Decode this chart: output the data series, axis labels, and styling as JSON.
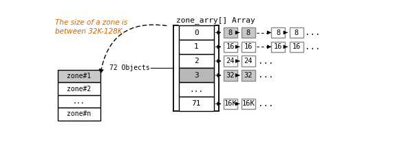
{
  "title": "zone_arry[] Array",
  "left_text": "The size of a zone is\nbetween 32K-128K.",
  "zone_label": "72 Objects",
  "zones": [
    "zone#1",
    "zone#2",
    "...",
    "zone#n"
  ],
  "array_rows": [
    "0",
    "1",
    "2",
    "3",
    "...",
    "71"
  ],
  "row_values": {
    "0": [
      "8",
      "8",
      "8",
      "8"
    ],
    "1": [
      "16",
      "16",
      "16",
      "16"
    ],
    "2": [
      "24",
      "24"
    ],
    "3": [
      "32",
      "32"
    ],
    "71": [
      "16K",
      "16K"
    ]
  },
  "highlighted_rows": [
    "3"
  ],
  "highlighted_zone": "zone#1",
  "bg_color": "#ffffff",
  "box_color": "#ffffff",
  "highlight_color": "#b8b8b8",
  "light_gray": "#c8c8c8",
  "text_color": "#000000"
}
